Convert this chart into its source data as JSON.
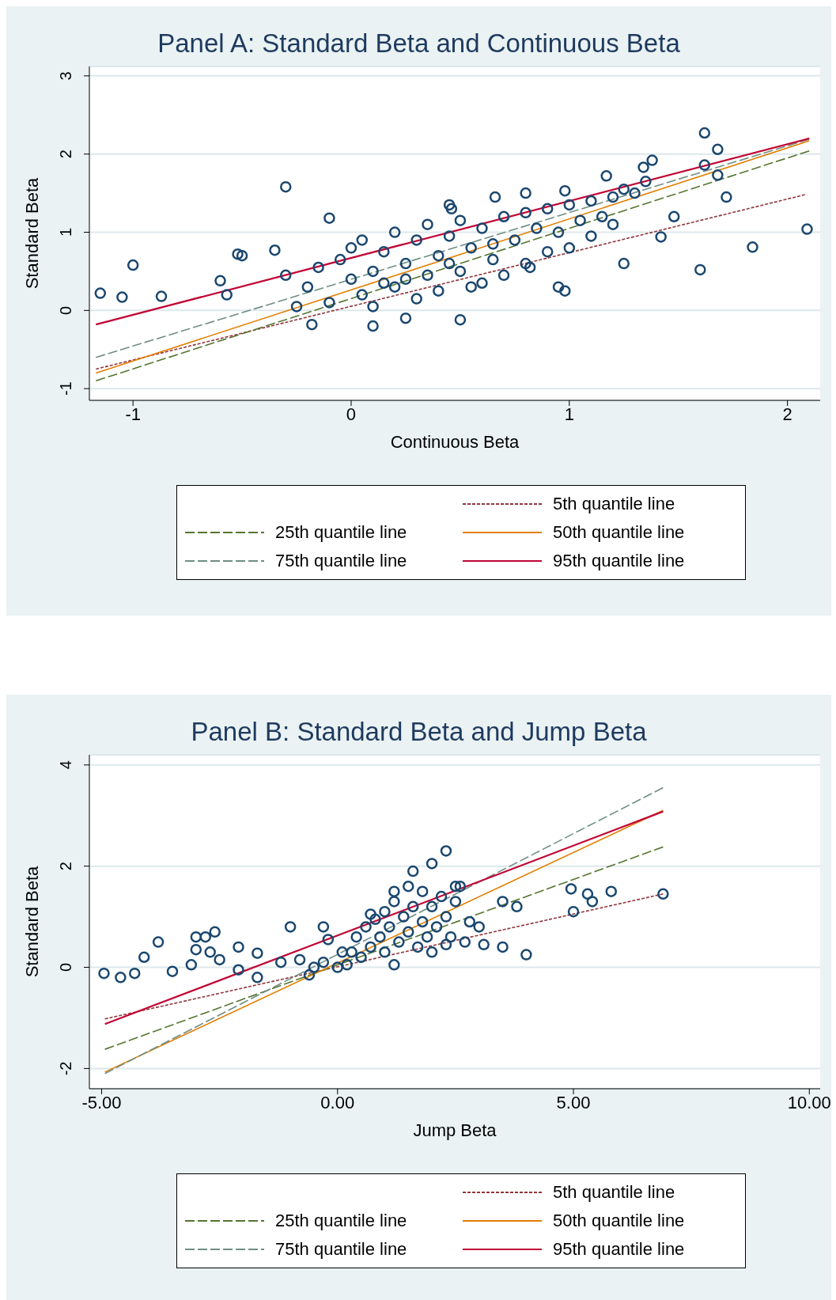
{
  "chart_data": [
    {
      "type": "scatter",
      "title": "Panel A: Standard Beta and Continuous Beta",
      "xlabel": "Continuous Beta",
      "ylabel": "Standard Beta",
      "xlim": [
        -1.2,
        2.15
      ],
      "xticks": [
        -1,
        0,
        1,
        2
      ],
      "ylim": [
        -1.15,
        3.12
      ],
      "yticks": [
        -1,
        0,
        1,
        2,
        3
      ],
      "grid": "y",
      "legend": "bottom",
      "series": [
        {
          "marker": "circle",
          "color": "#1a476f",
          "x": [
            -1.15,
            -1.05,
            -1.0,
            -0.87,
            -0.57,
            -0.6,
            -0.52,
            -0.5,
            -0.3,
            -0.35,
            -0.1,
            1.62,
            1.68,
            1.62,
            1.68,
            1.72,
            1.48,
            1.6,
            1.84,
            2.09,
            1.38,
            1.34,
            1.2,
            1.25,
            1.17,
            1.42,
            0.98,
            0.8,
            0.66,
            0.45,
            0.46,
            0.5,
            0.25,
            0.1,
            -0.18,
            0.95,
            0.98,
            0.82,
            -0.2,
            -0.15,
            -0.1,
            -0.05,
            0,
            0,
            0.05,
            0.05,
            0.1,
            0.1,
            0.15,
            0.2,
            0.2,
            0.25,
            0.3,
            0.3,
            0.35,
            0.35,
            0.4,
            0.4,
            0.45,
            0.5,
            0.5,
            0.55,
            0.6,
            0.6,
            0.65,
            0.7,
            0.7,
            0.75,
            0.8,
            0.8,
            0.85,
            0.9,
            0.9,
            0.95,
            1.0,
            1.0,
            1.05,
            1.1,
            1.1,
            1.15,
            1.2,
            -0.25,
            -0.3,
            0.15,
            0.45,
            0.65,
            0.25,
            0.55,
            1.25,
            1.3,
            1.35
          ],
          "values": [
            0.22,
            0.17,
            0.58,
            0.18,
            0.2,
            0.38,
            0.72,
            0.7,
            1.58,
            0.77,
            1.18,
            2.27,
            2.06,
            1.86,
            1.73,
            1.45,
            1.2,
            0.52,
            0.81,
            1.04,
            1.92,
            1.83,
            1.1,
            0.6,
            1.72,
            0.94,
            1.53,
            1.5,
            1.45,
            1.35,
            1.3,
            -0.12,
            -0.1,
            -0.2,
            -0.18,
            0.3,
            0.25,
            0.55,
            0.3,
            0.55,
            0.1,
            0.65,
            0.4,
            0.8,
            0.2,
            0.9,
            0.5,
            0.05,
            0.75,
            0.3,
            1.0,
            0.6,
            0.15,
            0.9,
            0.45,
            1.1,
            0.7,
            0.25,
            0.95,
            0.5,
            1.15,
            0.8,
            0.35,
            1.05,
            0.65,
            1.2,
            0.45,
            0.9,
            1.25,
            0.6,
            1.05,
            0.75,
            1.3,
            1.0,
            0.8,
            1.35,
            1.15,
            0.95,
            1.4,
            1.2,
            1.45,
            0.05,
            0.45,
            0.35,
            0.6,
            0.85,
            0.4,
            0.3,
            1.55,
            1.5,
            1.65
          ]
        },
        {
          "type": "line",
          "name": "5th quantile line",
          "color": "#90353b",
          "line_style": "dotted",
          "x": [
            -1.17,
            2.08
          ],
          "values": [
            -0.75,
            1.48
          ]
        },
        {
          "type": "line",
          "name": "25th quantile line",
          "color": "#55752f",
          "line_style": "dashed",
          "x": [
            -1.17,
            2.1
          ],
          "values": [
            -0.9,
            2.04
          ]
        },
        {
          "type": "line",
          "name": "50th quantile line",
          "color": "#e37e00",
          "line_style": "solid",
          "x": [
            -1.17,
            2.1
          ],
          "values": [
            -0.8,
            2.17
          ]
        },
        {
          "type": "line",
          "name": "75th quantile line",
          "color": "#6e8e84",
          "line_style": "dashed",
          "x": [
            -1.17,
            2.1
          ],
          "values": [
            -0.6,
            2.19
          ]
        },
        {
          "type": "line",
          "name": "95th quantile line",
          "color": "#c10534",
          "line_style": "solid",
          "x": [
            -1.17,
            2.1
          ],
          "values": [
            -0.18,
            2.2
          ]
        }
      ]
    },
    {
      "type": "scatter",
      "title": "Panel B: Standard Beta and Jump Beta",
      "xlabel": "Jump Beta",
      "ylabel": "Standard Beta",
      "xlim": [
        -5.26,
        10.23
      ],
      "xticks": [
        {
          "value": -5,
          "label": "-5.00"
        },
        {
          "value": 0,
          "label": "0.00"
        },
        {
          "value": 5,
          "label": "5.00"
        },
        {
          "value": 10,
          "label": "10.00"
        }
      ],
      "ylim": [
        -2.4,
        4.2
      ],
      "yticks": [
        -2,
        0,
        2,
        4
      ],
      "grid": "y",
      "legend": "bottom",
      "series": [
        {
          "marker": "circle",
          "color": "#1a476f",
          "x": [
            -4.95,
            -4.6,
            -4.3,
            -4.1,
            -3.8,
            -3.5,
            -3.1,
            -3.0,
            -3.0,
            -2.8,
            -2.7,
            -2.6,
            -2.5,
            -2.1,
            -2.1,
            -1.7,
            -1.7,
            -1.0,
            -0.3,
            -0.2,
            0.7,
            1.2,
            1.6,
            2.0,
            2.3,
            2.5,
            3.5,
            3.8,
            4.0,
            3.5,
            4.95,
            5.0,
            5.3,
            5.4,
            5.8,
            6.9,
            2.3,
            2.7,
            3.1,
            -0.5,
            -0.3,
            0,
            0.2,
            0.3,
            0.4,
            0.5,
            0.6,
            0.7,
            0.8,
            0.9,
            1.0,
            1.0,
            1.1,
            1.2,
            1.3,
            1.4,
            1.5,
            1.5,
            1.6,
            1.7,
            1.8,
            1.8,
            1.9,
            2.0,
            2.1,
            2.2,
            2.3,
            2.4,
            2.5,
            0.1,
            -0.8,
            -1.2,
            -0.6,
            1.2,
            2.0,
            2.8,
            3.0,
            2.6
          ],
          "values": [
            -0.12,
            -0.2,
            -0.12,
            0.2,
            0.5,
            -0.08,
            0.05,
            0.35,
            0.6,
            0.6,
            0.3,
            0.7,
            0.15,
            0.4,
            -0.05,
            0.28,
            -0.2,
            0.8,
            0.8,
            0.55,
            1.05,
            1.5,
            1.9,
            2.05,
            2.3,
            1.6,
            1.3,
            1.2,
            0.25,
            0.4,
            1.55,
            1.1,
            1.45,
            1.3,
            1.5,
            1.45,
            0.45,
            0.5,
            0.45,
            0,
            0.1,
            0,
            0.05,
            0.3,
            0.6,
            0.2,
            0.8,
            0.4,
            0.95,
            0.6,
            1.1,
            0.3,
            0.8,
            1.3,
            0.5,
            1.0,
            1.6,
            0.7,
            1.2,
            0.4,
            1.5,
            0.9,
            0.6,
            1.2,
            0.8,
            1.4,
            1.0,
            0.6,
            1.3,
            0.3,
            0.15,
            0.1,
            -0.15,
            0.05,
            0.3,
            0.9,
            0.8,
            1.6
          ]
        },
        {
          "type": "line",
          "name": "5th quantile line",
          "color": "#90353b",
          "line_style": "dotted",
          "x": [
            -4.93,
            6.9
          ],
          "values": [
            -1.02,
            1.45
          ]
        },
        {
          "type": "line",
          "name": "25th quantile line",
          "color": "#55752f",
          "line_style": "dashed",
          "x": [
            -4.93,
            6.9
          ],
          "values": [
            -1.62,
            2.38
          ]
        },
        {
          "type": "line",
          "name": "50th quantile line",
          "color": "#e37e00",
          "line_style": "solid",
          "x": [
            -4.93,
            6.9
          ],
          "values": [
            -2.07,
            3.1
          ]
        },
        {
          "type": "line",
          "name": "75th quantile line",
          "color": "#6e8e84",
          "line_style": "dashed",
          "x": [
            -4.93,
            6.9
          ],
          "values": [
            -2.1,
            3.55
          ]
        },
        {
          "type": "line",
          "name": "95th quantile line",
          "color": "#c10534",
          "line_style": "solid",
          "x": [
            -4.93,
            6.9
          ],
          "values": [
            -1.12,
            3.08
          ]
        }
      ]
    }
  ]
}
